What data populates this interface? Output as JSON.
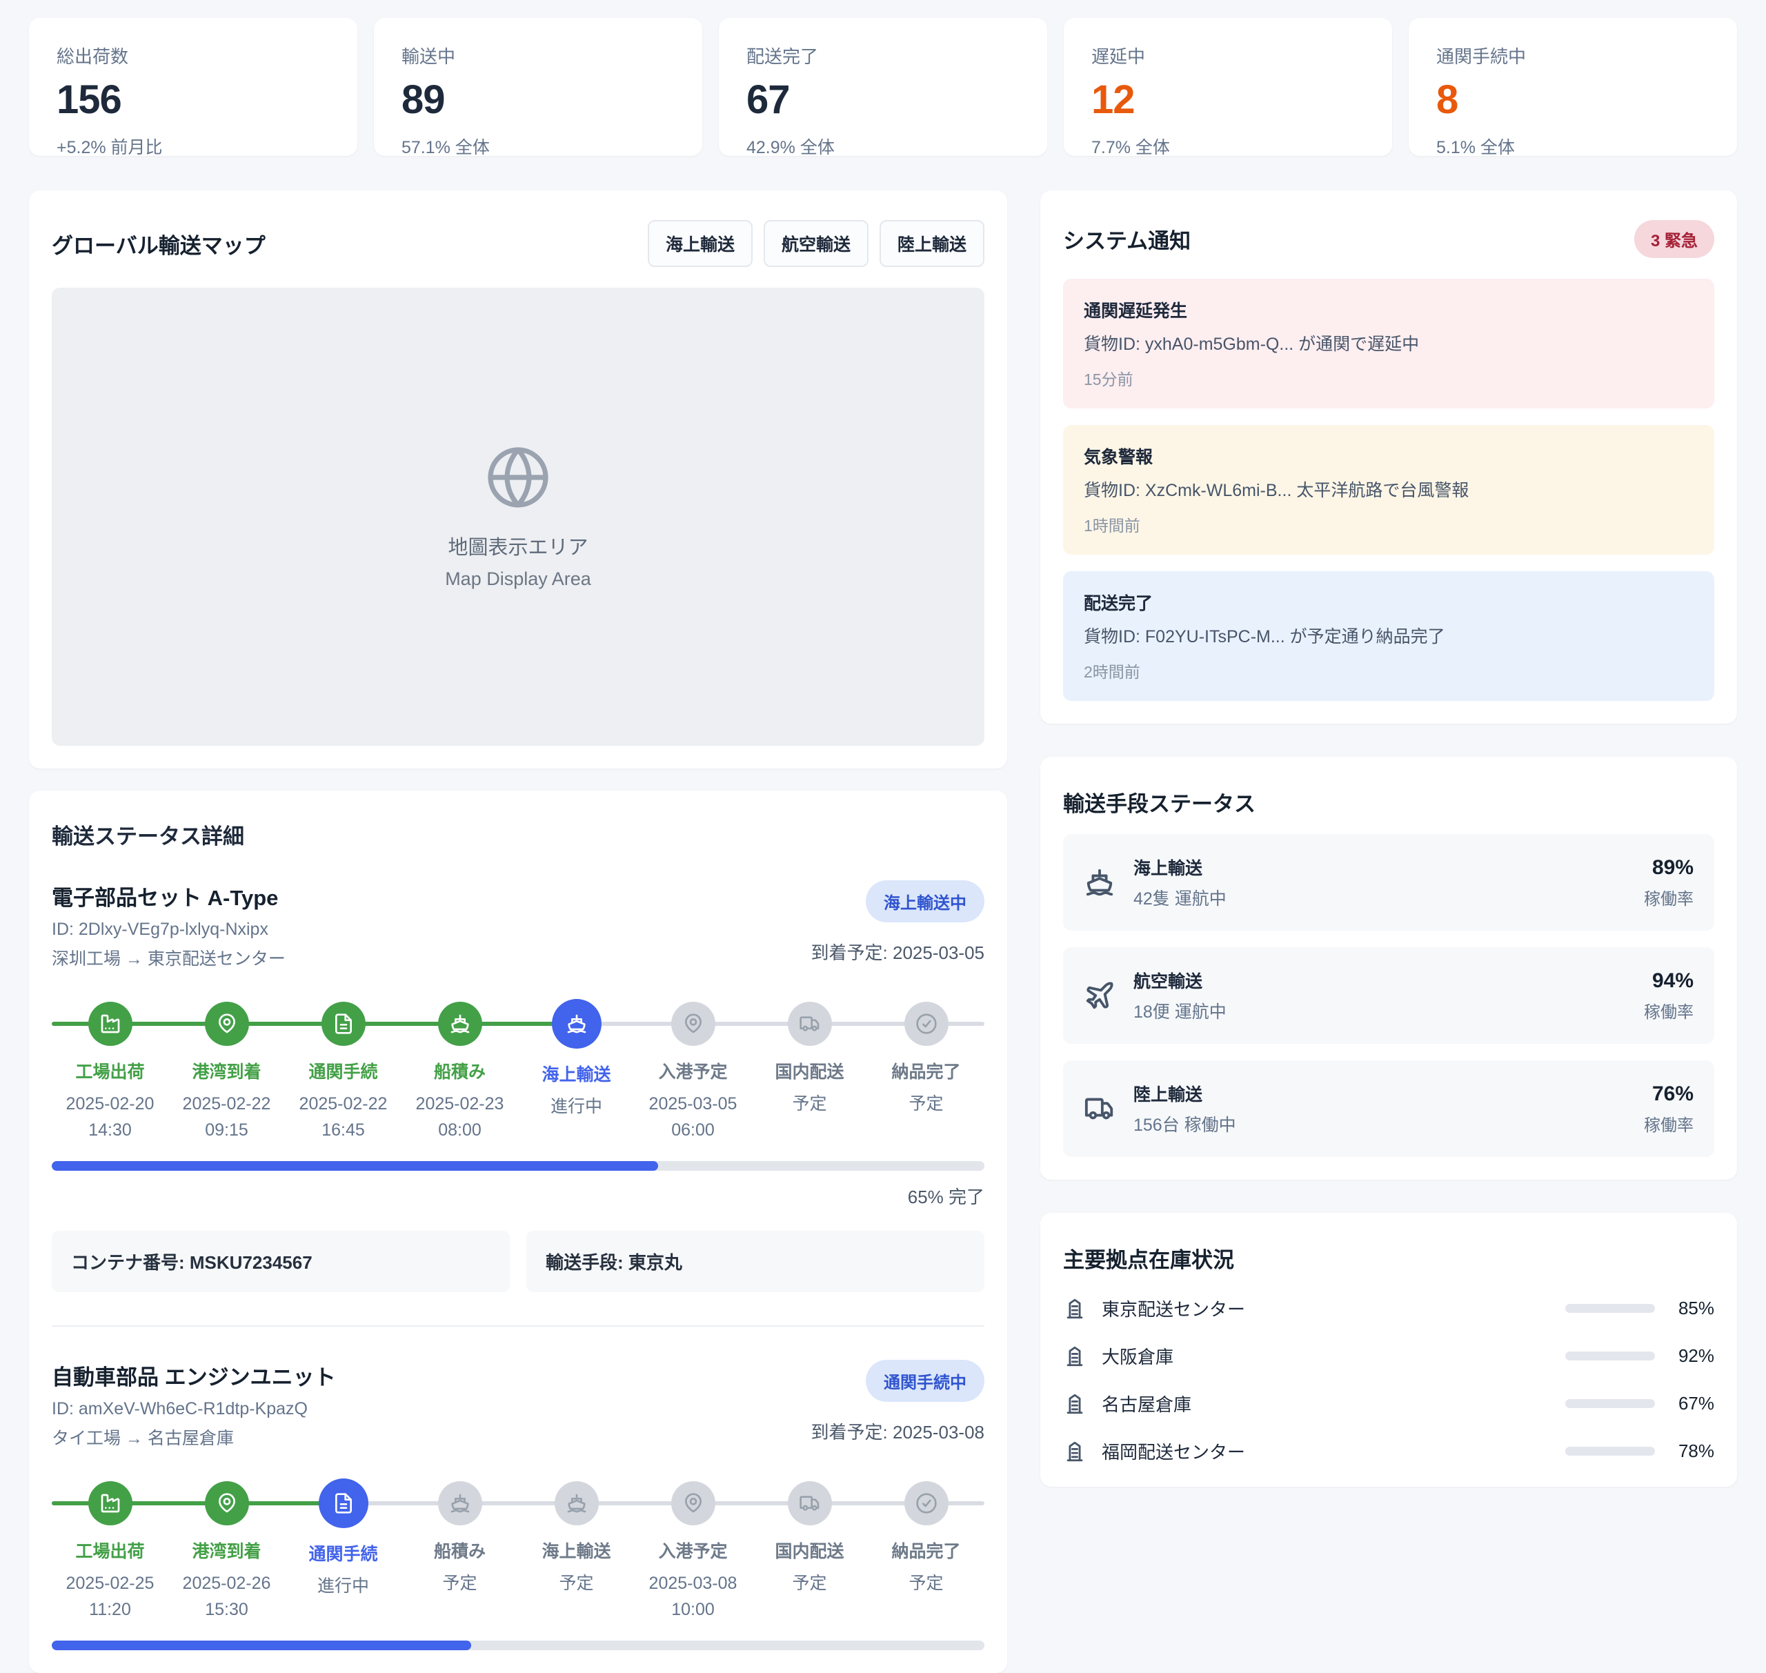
{
  "colors": {
    "green": "#43a047",
    "blue": "#4263eb",
    "orange": "#e8590c",
    "slate": "#4a5568"
  },
  "stats": [
    {
      "label": "総出荷数",
      "value": "156",
      "sub": "+5.2% 前月比",
      "emphasis": "normal"
    },
    {
      "label": "輸送中",
      "value": "89",
      "sub": "57.1% 全体",
      "emphasis": "normal"
    },
    {
      "label": "配送完了",
      "value": "67",
      "sub": "42.9% 全体",
      "emphasis": "normal"
    },
    {
      "label": "遅延中",
      "value": "12",
      "sub": "7.7% 全体",
      "emphasis": "orange"
    },
    {
      "label": "通関手続中",
      "value": "8",
      "sub": "5.1% 全体",
      "emphasis": "orange"
    }
  ],
  "map": {
    "title": "グローバル輸送マップ",
    "filters": [
      {
        "label": "海上輸送"
      },
      {
        "label": "航空輸送"
      },
      {
        "label": "陸上輸送"
      }
    ],
    "globe_icon": "globe-icon",
    "placeholder_jp": "地圖表示エリア",
    "placeholder_en": "Map Display Area"
  },
  "notifications": {
    "title": "システム通知",
    "urgent_badge": "3 緊急",
    "items": [
      {
        "type": "alert",
        "title": "通関遅延発生",
        "body": "貨物ID: yxhA0-m5Gbm-Q... が通関で遅延中",
        "time": "15分前"
      },
      {
        "type": "warning",
        "title": "気象警報",
        "body": "貨物ID: XzCmk-WL6mi-B... 太平洋航路で台風警報",
        "time": "1時間前"
      },
      {
        "type": "info",
        "title": "配送完了",
        "body": "貨物ID: F02YU-ITsPC-M... が予定通り納品完了",
        "time": "2時間前"
      }
    ]
  },
  "transport_modes": {
    "title": "輸送手段ステータス",
    "items": [
      {
        "icon": "ship",
        "name": "海上輸送",
        "sub": "42隻 運航中",
        "percent": "89%",
        "percent_label": "稼働率"
      },
      {
        "icon": "plane",
        "name": "航空輸送",
        "sub": "18便 運航中",
        "percent": "94%",
        "percent_label": "稼働率"
      },
      {
        "icon": "truck",
        "name": "陸上輸送",
        "sub": "156台 稼働中",
        "percent": "76%",
        "percent_label": "稼働率"
      }
    ]
  },
  "inventory": {
    "title": "主要拠点在庫状況",
    "items": [
      {
        "icon": "warehouse",
        "name": "東京配送センター",
        "percent": 85,
        "percent_label": "85%"
      },
      {
        "icon": "warehouse",
        "name": "大阪倉庫",
        "percent": 92,
        "percent_label": "92%"
      },
      {
        "icon": "warehouse",
        "name": "名古屋倉庫",
        "percent": 67,
        "percent_label": "67%"
      },
      {
        "icon": "warehouse",
        "name": "福岡配送センター",
        "percent": 78,
        "percent_label": "78%"
      }
    ]
  },
  "shipments": {
    "title": "輸送ステータス詳細",
    "items": [
      {
        "name": "電子部品セット A-Type",
        "id": "ID: 2Dlxy-VEg7p-lxlyq-Nxipx",
        "route": "深圳工場 → 東京配送センター",
        "status_badge": "海上輸送中",
        "eta": "到着予定: 2025-03-05",
        "steps": [
          {
            "icon": "factory",
            "label": "工場出荷",
            "sub": "2025-02-20 14:30",
            "state": "done"
          },
          {
            "icon": "pin",
            "label": "港湾到着",
            "sub": "2025-02-22 09:15",
            "state": "done"
          },
          {
            "icon": "doc",
            "label": "通関手続",
            "sub": "2025-02-22 16:45",
            "state": "done"
          },
          {
            "icon": "ship",
            "label": "船積み",
            "sub": "2025-02-23 08:00",
            "state": "done"
          },
          {
            "icon": "ship",
            "label": "海上輸送",
            "sub": "進行中",
            "state": "active"
          },
          {
            "icon": "pin",
            "label": "入港予定",
            "sub": "2025-03-05 06:00",
            "state": "pending"
          },
          {
            "icon": "truck",
            "label": "国内配送",
            "sub": "予定",
            "state": "pending"
          },
          {
            "icon": "check",
            "label": "納品完了",
            "sub": "予定",
            "state": "pending"
          }
        ],
        "progress_percent": 65,
        "progress_label": "65% 完了",
        "details": [
          {
            "text": "コンテナ番号: MSKU7234567"
          },
          {
            "text": "輸送手段: 東京丸"
          }
        ]
      },
      {
        "name": "自動車部品 エンジンユニット",
        "id": "ID: amXeV-Wh6eC-R1dtp-KpazQ",
        "route": "タイ工場 → 名古屋倉庫",
        "status_badge": "通関手続中",
        "eta": "到着予定: 2025-03-08",
        "steps": [
          {
            "icon": "factory",
            "label": "工場出荷",
            "sub": "2025-02-25 11:20",
            "state": "done"
          },
          {
            "icon": "pin",
            "label": "港湾到着",
            "sub": "2025-02-26 15:30",
            "state": "done"
          },
          {
            "icon": "doc",
            "label": "通関手続",
            "sub": "進行中",
            "state": "active"
          },
          {
            "icon": "ship",
            "label": "船積み",
            "sub": "予定",
            "state": "pending"
          },
          {
            "icon": "ship",
            "label": "海上輸送",
            "sub": "予定",
            "state": "pending"
          },
          {
            "icon": "pin",
            "label": "入港予定",
            "sub": "2025-03-08 10:00",
            "state": "pending"
          },
          {
            "icon": "truck",
            "label": "国内配送",
            "sub": "予定",
            "state": "pending"
          },
          {
            "icon": "check",
            "label": "納品完了",
            "sub": "予定",
            "state": "pending"
          }
        ],
        "progress_percent": 45,
        "progress_label": "",
        "details": []
      }
    ]
  }
}
